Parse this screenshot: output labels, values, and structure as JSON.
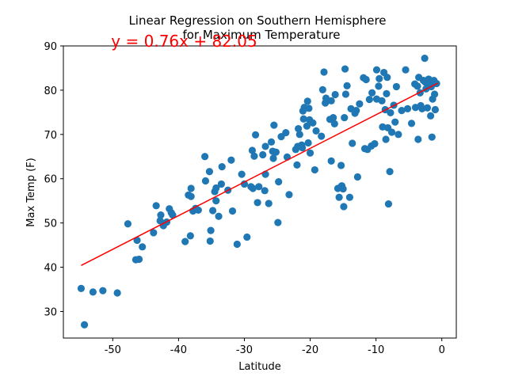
{
  "chart_data": {
    "type": "scatter",
    "title_lines": [
      "Linear Regression on Southern Hemisphere",
      "for Maximum Temperature"
    ],
    "xlabel": "Latitude",
    "ylabel": "Max Temp (F)",
    "xlim": [
      -57.5,
      2.2
    ],
    "ylim": [
      24,
      90
    ],
    "xticks": [
      -50,
      -40,
      -30,
      -20,
      -10,
      0
    ],
    "yticks": [
      30,
      40,
      50,
      60,
      70,
      80,
      90
    ],
    "grid": false,
    "point_color": "#1f77b4",
    "regression": {
      "equation": "y = 0.76x + 82.05",
      "slope": 0.76,
      "intercept": 82.05,
      "x_start": -54.8,
      "x_end": -0.6,
      "line_color": "#ff0000",
      "equation_color": "#ff0000",
      "equation_anchor": [
        -50,
        90
      ]
    },
    "series": [
      {
        "points": [
          [
            -54.8,
            35.2
          ],
          [
            -54.3,
            27.0
          ],
          [
            -53.0,
            34.4
          ],
          [
            -51.5,
            34.7
          ],
          [
            -49.3,
            34.2
          ],
          [
            -47.7,
            49.8
          ],
          [
            -46.5,
            41.7
          ],
          [
            -46.3,
            46.1
          ],
          [
            -46.0,
            41.8
          ],
          [
            -45.5,
            44.6
          ],
          [
            -43.8,
            47.8
          ],
          [
            -43.4,
            53.9
          ],
          [
            -42.8,
            50.5
          ],
          [
            -42.7,
            51.8
          ],
          [
            -42.3,
            49.4
          ],
          [
            -41.8,
            50.2
          ],
          [
            -41.4,
            53.2
          ],
          [
            -41.1,
            52.3
          ],
          [
            -40.9,
            51.8
          ],
          [
            -39.0,
            45.8
          ],
          [
            -38.5,
            56.3
          ],
          [
            -38.2,
            47.1
          ],
          [
            -38.1,
            57.8
          ],
          [
            -38.1,
            56.0
          ],
          [
            -37.8,
            52.7
          ],
          [
            -37.4,
            53.3
          ],
          [
            -37.0,
            52.9
          ],
          [
            -36.0,
            65.0
          ],
          [
            -35.9,
            59.5
          ],
          [
            -35.3,
            61.6
          ],
          [
            -35.2,
            45.9
          ],
          [
            -35.1,
            48.3
          ],
          [
            -34.8,
            52.8
          ],
          [
            -34.5,
            57.1
          ],
          [
            -34.3,
            57.9
          ],
          [
            -34.3,
            55.0
          ],
          [
            -33.9,
            51.5
          ],
          [
            -33.5,
            58.8
          ],
          [
            -33.4,
            62.7
          ],
          [
            -32.5,
            57.4
          ],
          [
            -32.0,
            64.2
          ],
          [
            -31.8,
            52.7
          ],
          [
            -31.1,
            45.2
          ],
          [
            -30.4,
            61.0
          ],
          [
            -30.0,
            58.8
          ],
          [
            -29.6,
            46.8
          ],
          [
            -29.0,
            58.2
          ],
          [
            -28.8,
            66.4
          ],
          [
            -28.7,
            57.8
          ],
          [
            -28.5,
            65.1
          ],
          [
            -28.3,
            69.9
          ],
          [
            -28.0,
            54.6
          ],
          [
            -27.8,
            58.2
          ],
          [
            -27.2,
            65.4
          ],
          [
            -26.8,
            61.0
          ],
          [
            -26.8,
            67.3
          ],
          [
            -26.9,
            57.3
          ],
          [
            -26.3,
            54.4
          ],
          [
            -25.9,
            68.3
          ],
          [
            -25.7,
            66.2
          ],
          [
            -25.6,
            64.6
          ],
          [
            -25.5,
            72.1
          ],
          [
            -25.2,
            66.0
          ],
          [
            -24.8,
            59.3
          ],
          [
            -24.9,
            50.1
          ],
          [
            -24.4,
            69.5
          ],
          [
            -23.7,
            70.4
          ],
          [
            -23.5,
            64.9
          ],
          [
            -23.2,
            56.4
          ],
          [
            -22.2,
            66.6
          ],
          [
            -22.0,
            63.1
          ],
          [
            -21.8,
            71.3
          ],
          [
            -21.9,
            67.3
          ],
          [
            -21.6,
            70.0
          ],
          [
            -21.3,
            67.6
          ],
          [
            -21.2,
            67.0
          ],
          [
            -21.1,
            75.3
          ],
          [
            -21.0,
            73.5
          ],
          [
            -20.9,
            76.1
          ],
          [
            -20.5,
            71.9
          ],
          [
            -20.4,
            77.5
          ],
          [
            -20.3,
            68.1
          ],
          [
            -20.2,
            75.9
          ],
          [
            -20.1,
            73.3
          ],
          [
            -20.0,
            65.8
          ],
          [
            -19.6,
            72.6
          ],
          [
            -19.3,
            62.0
          ],
          [
            -19.1,
            70.8
          ],
          [
            -18.3,
            69.6
          ],
          [
            -18.1,
            80.1
          ],
          [
            -17.9,
            84.1
          ],
          [
            -17.7,
            77.1
          ],
          [
            -17.6,
            78.2
          ],
          [
            -17.0,
            73.4
          ],
          [
            -16.8,
            64.0
          ],
          [
            -16.8,
            77.6
          ],
          [
            -16.5,
            73.8
          ],
          [
            -16.3,
            72.4
          ],
          [
            -16.2,
            79.0
          ],
          [
            -15.8,
            57.8
          ],
          [
            -15.6,
            55.8
          ],
          [
            -15.3,
            63.0
          ],
          [
            -15.2,
            58.4
          ],
          [
            -15.0,
            57.7
          ],
          [
            -14.9,
            53.7
          ],
          [
            -14.8,
            73.8
          ],
          [
            -14.7,
            84.8
          ],
          [
            -14.6,
            79.1
          ],
          [
            -14.4,
            81.0
          ],
          [
            -14.0,
            55.8
          ],
          [
            -13.8,
            75.8
          ],
          [
            -13.6,
            68.0
          ],
          [
            -13.2,
            74.8
          ],
          [
            -13.0,
            75.4
          ],
          [
            -12.8,
            60.4
          ],
          [
            -12.5,
            76.9
          ],
          [
            -11.9,
            82.8
          ],
          [
            -11.7,
            66.8
          ],
          [
            -11.5,
            82.4
          ],
          [
            -11.3,
            66.6
          ],
          [
            -11.0,
            77.9
          ],
          [
            -10.7,
            67.4
          ],
          [
            -10.6,
            79.4
          ],
          [
            -10.2,
            67.9
          ],
          [
            -9.9,
            84.6
          ],
          [
            -9.9,
            78.0
          ],
          [
            -9.6,
            80.9
          ],
          [
            -9.5,
            82.6
          ],
          [
            -9.1,
            77.6
          ],
          [
            -9.0,
            71.7
          ],
          [
            -8.8,
            84.0
          ],
          [
            -8.6,
            75.6
          ],
          [
            -8.5,
            68.9
          ],
          [
            -8.4,
            79.2
          ],
          [
            -8.3,
            82.9
          ],
          [
            -8.2,
            71.5
          ],
          [
            -8.1,
            54.3
          ],
          [
            -7.9,
            61.6
          ],
          [
            -7.8,
            74.9
          ],
          [
            -7.6,
            70.5
          ],
          [
            -7.3,
            76.6
          ],
          [
            -7.1,
            72.8
          ],
          [
            -6.9,
            80.8
          ],
          [
            -6.6,
            70.0
          ],
          [
            -6.1,
            75.4
          ],
          [
            -5.5,
            84.6
          ],
          [
            -5.2,
            75.8
          ],
          [
            -4.6,
            72.5
          ],
          [
            -4.1,
            81.4
          ],
          [
            -4.0,
            76.1
          ],
          [
            -3.7,
            80.9
          ],
          [
            -3.6,
            68.9
          ],
          [
            -3.5,
            82.9
          ],
          [
            -3.3,
            79.4
          ],
          [
            -3.2,
            76.5
          ],
          [
            -3.0,
            75.8
          ],
          [
            -2.8,
            82.2
          ],
          [
            -2.6,
            87.2
          ],
          [
            -2.5,
            81.8
          ],
          [
            -2.4,
            80.3
          ],
          [
            -2.2,
            76.0
          ],
          [
            -2.0,
            82.5
          ],
          [
            -1.8,
            81.5
          ],
          [
            -1.7,
            74.2
          ],
          [
            -1.6,
            80.8
          ],
          [
            -1.5,
            69.4
          ],
          [
            -1.4,
            78.0
          ],
          [
            -1.2,
            82.2
          ],
          [
            -1.1,
            79.1
          ],
          [
            -1.0,
            75.6
          ],
          [
            -0.8,
            81.5
          ]
        ]
      }
    ]
  }
}
